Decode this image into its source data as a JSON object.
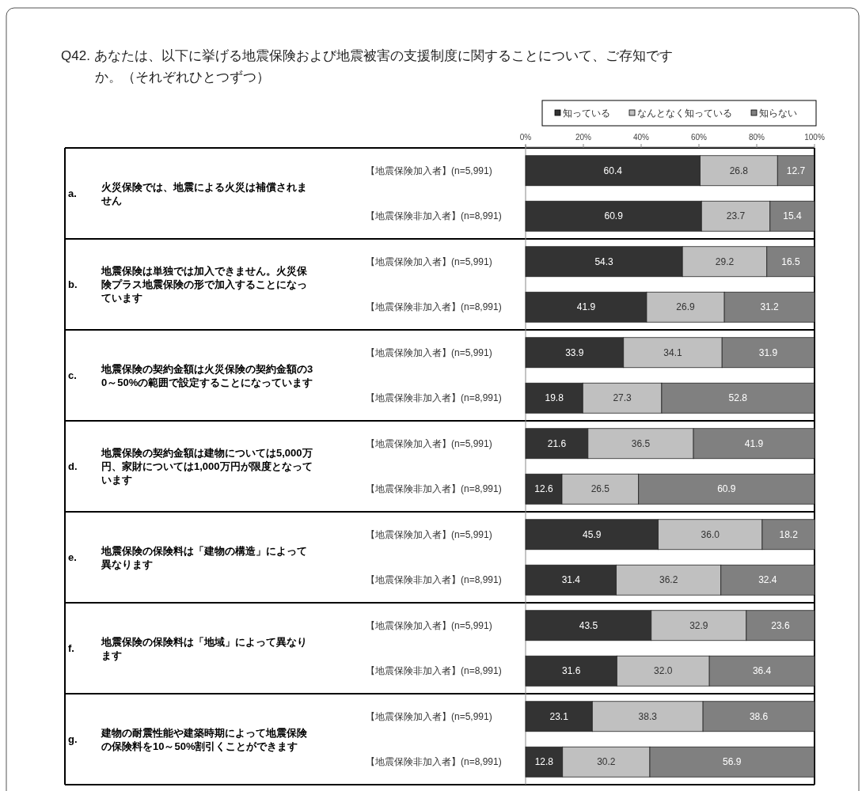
{
  "chart_data": {
    "type": "bar",
    "orientation": "horizontal",
    "stacked": true,
    "title": "Q42. あなたは、以下に挙げる地震保険および地震被害の支援制度に関することについて、ご存知ですか。（それぞれひとつずつ）",
    "categories": [
      "【地震保険加入者】(n=5,991)",
      "【地震保険非加入者】(n=8,991)",
      "【地震保険加入者】(n=5,991)",
      "【地震保険非加入者】(n=8,991)",
      "【地震保険加入者】(n=5,991)",
      "【地震保険非加入者】(n=8,991)",
      "【地震保険加入者】(n=5,991)",
      "【地震保険非加入者】(n=8,991)",
      "【地震保険加入者】(n=5,991)",
      "【地震保険非加入者】(n=8,991)",
      "【地震保険加入者】(n=5,991)",
      "【地震保険非加入者】(n=8,991)",
      "【地震保険加入者】(n=5,991)",
      "【地震保険非加入者】(n=8,991)"
    ],
    "series": [
      {
        "name": "知っている",
        "color": "#333333",
        "values": [
          60.4,
          60.9,
          54.3,
          41.9,
          33.9,
          19.8,
          21.6,
          12.6,
          45.9,
          31.4,
          43.5,
          31.6,
          23.1,
          12.8
        ],
        "value_labels": [
          "60.4",
          "60.9",
          "54.3",
          "41.9",
          "33.9",
          "19.8",
          "21.6",
          "12.6",
          "45.9",
          "31.4",
          "43.5",
          "31.6",
          "23.1",
          "12.8"
        ]
      },
      {
        "name": "なんとなく知っている",
        "color": "#c0c0c0",
        "values": [
          26.8,
          23.7,
          29.2,
          26.9,
          34.1,
          27.3,
          36.5,
          26.5,
          36.0,
          36.2,
          32.9,
          32.0,
          38.3,
          30.2
        ],
        "value_labels": [
          "26.8",
          "23.7",
          "29.2",
          "26.9",
          "34.1",
          "27.3",
          "36.5",
          "26.5",
          "36.0",
          "36.2",
          "32.9",
          "32.0",
          "38.3",
          "30.2"
        ]
      },
      {
        "name": "知らない",
        "color": "#808080",
        "values": [
          12.7,
          15.4,
          16.5,
          31.2,
          31.9,
          52.8,
          41.9,
          60.9,
          18.2,
          32.4,
          23.6,
          36.4,
          38.6,
          56.9
        ],
        "value_labels": [
          "12.7",
          "15.4",
          "16.5",
          "31.2",
          "31.9",
          "52.8",
          "41.9",
          "60.9",
          "18.2",
          "32.4",
          "23.6",
          "36.4",
          "38.6",
          "56.9"
        ]
      }
    ],
    "xlim": [
      0,
      100
    ],
    "xticks": [
      {
        "value": 0,
        "label": "0%"
      },
      {
        "value": 20,
        "label": "20%"
      },
      {
        "value": 40,
        "label": "40%"
      },
      {
        "value": 60,
        "label": "60%"
      },
      {
        "value": 80,
        "label": "80%"
      },
      {
        "value": 100,
        "label": "100%"
      }
    ],
    "legend": "top right",
    "annotations": [
      "a.",
      "火災保険では、地震による火災は補償されません",
      "b.",
      "地震保険は単独では加入できません。火災保険プラス地震保険の形で加入することになっています",
      "c.",
      "地震保険の契約金額は火災保険の契約金額の30～50%の範囲で設定することになっています",
      "d.",
      "地震保険の契約金額は建物については5,000万円、家財については1,000万円が限度となっています",
      "e.",
      "地震保険の保険料は「建物の構造」によって異なります",
      "f.",
      "地震保険の保険料は「地域」によって異なります",
      "g.",
      "建物の耐震性能や建築時期によって地震保険の保険料を10～50%割引くことができます"
    ]
  }
}
